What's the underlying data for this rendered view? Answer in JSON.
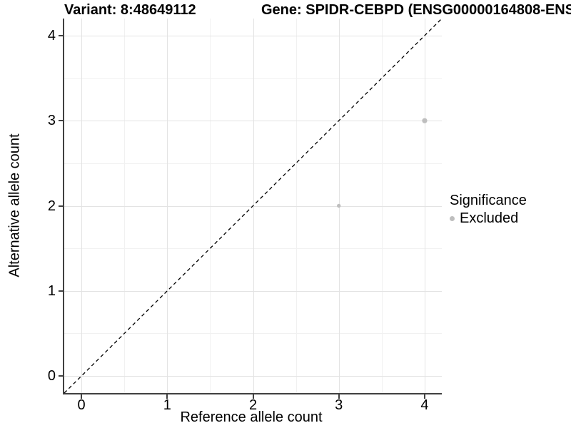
{
  "header": {
    "variant_title": "Variant: 8:48649112",
    "gene_title": "Gene: SPIDR-CEBPD (ENSG00000164808-ENS"
  },
  "chart_data": {
    "type": "scatter",
    "xlabel": "Reference allele count",
    "ylabel": "Alternative allele count",
    "xlim": [
      -0.2,
      4.2
    ],
    "ylim": [
      -0.2,
      4.2
    ],
    "x_ticks": [
      0,
      1,
      2,
      3,
      4
    ],
    "y_ticks": [
      0,
      1,
      2,
      3,
      4
    ],
    "x_minor_gridlines": [
      0.5,
      1.5,
      2.5,
      3.5
    ],
    "y_minor_gridlines": [
      0.5,
      1.5,
      2.5,
      3.5
    ],
    "grid": "major and minor, light gray on white",
    "reference_line": {
      "type": "identity",
      "slope": 1,
      "intercept": 0,
      "style": "dashed",
      "color": "#000000"
    },
    "series": [
      {
        "name": "Excluded",
        "color": "#bebebe",
        "points": [
          {
            "x": 3,
            "y": 2,
            "radius": 2.7
          },
          {
            "x": 4,
            "y": 3,
            "radius": 3.6
          }
        ]
      }
    ],
    "legend": {
      "title": "Significance",
      "position": "right-middle",
      "entries": [
        {
          "label": "Excluded",
          "color": "#bebebe"
        }
      ]
    }
  },
  "colors": {
    "background": "#ffffff",
    "grid_major": "#e3e3e3",
    "grid_minor": "#f1f1f1",
    "axis_line": "#404040",
    "text": "#000000"
  }
}
